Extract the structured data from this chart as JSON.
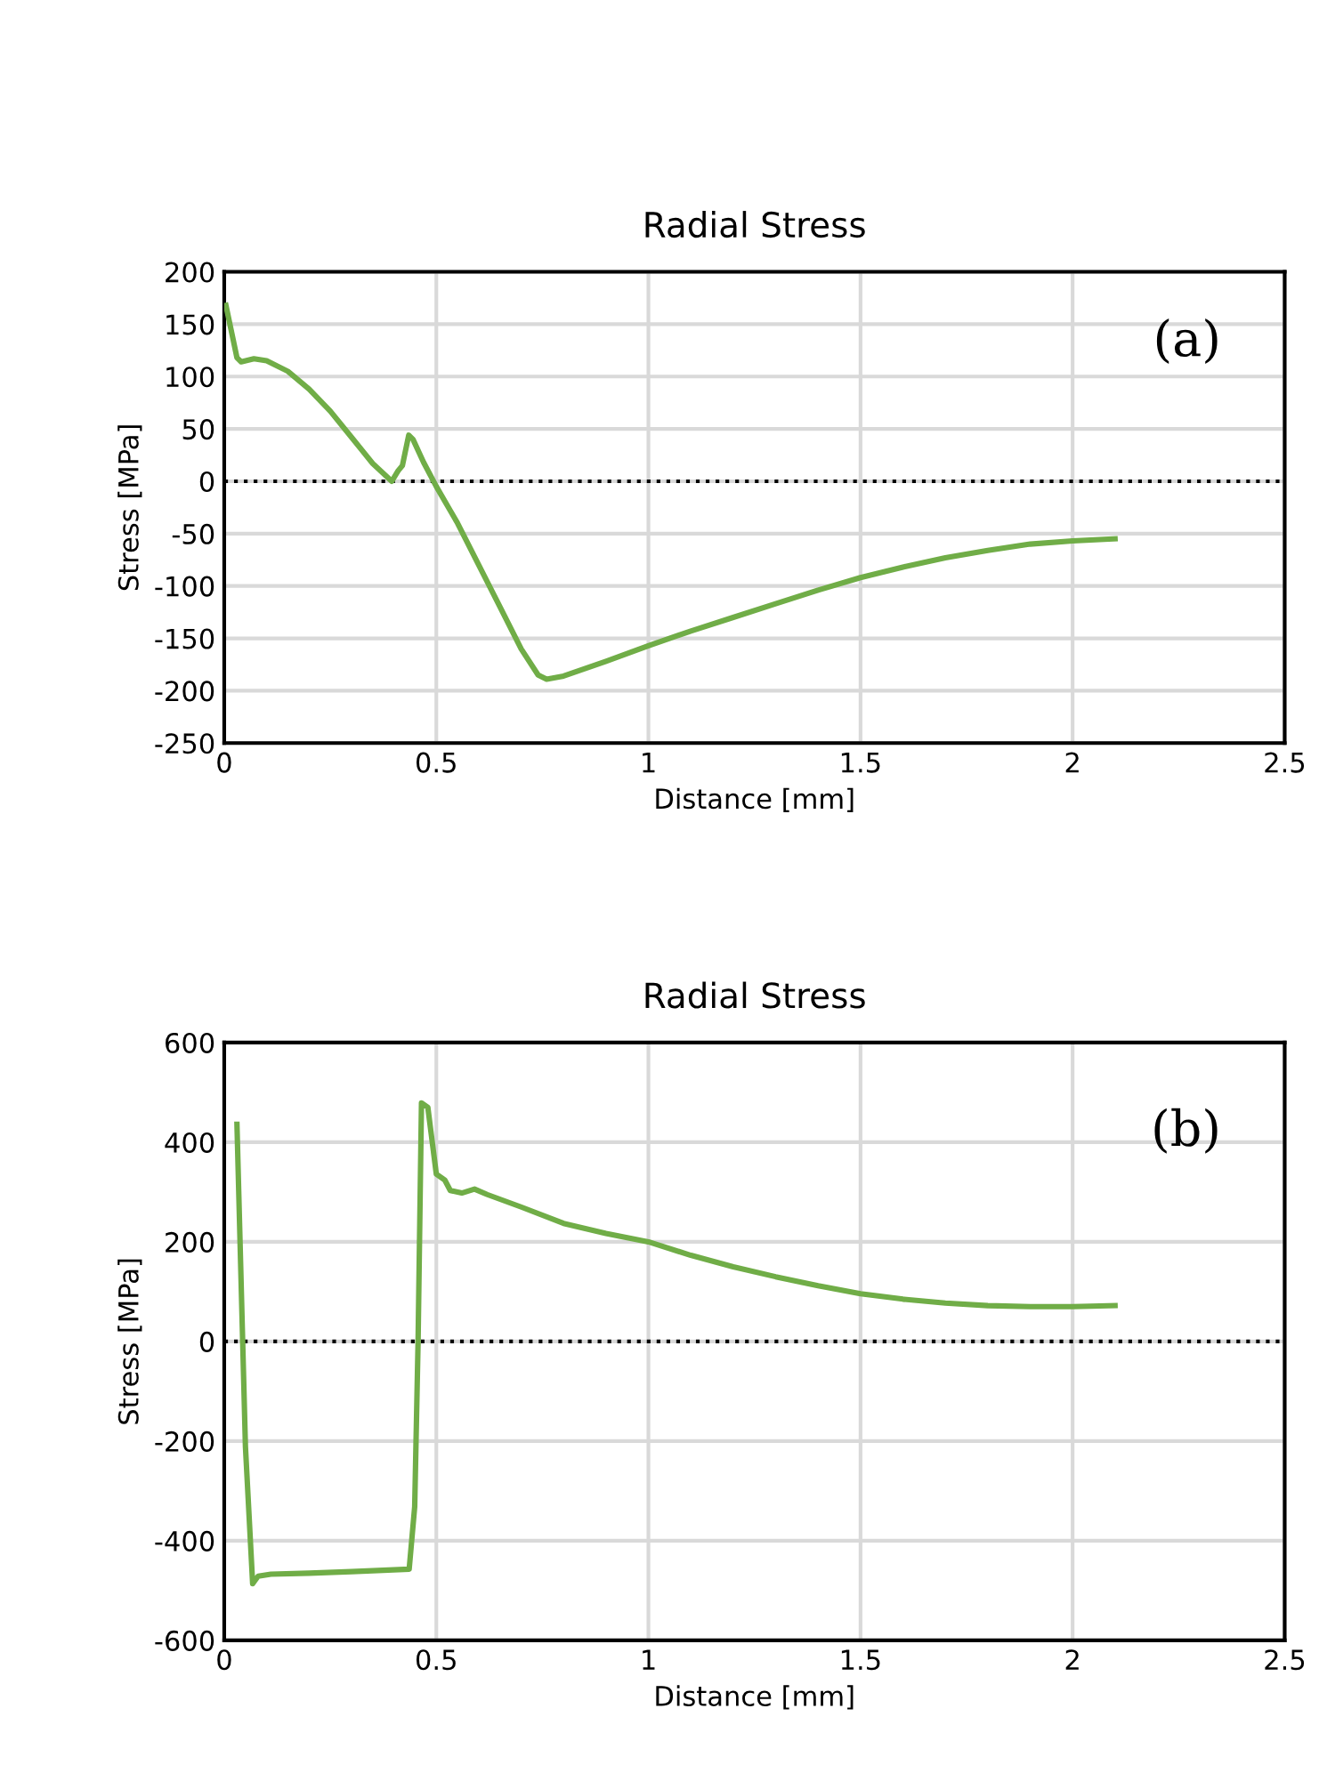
{
  "chart_data": [
    {
      "type": "line",
      "title": "Radial Stress",
      "xlabel": "Distance [mm]",
      "ylabel": "Stress [MPa]",
      "annotations": [
        "(a)"
      ],
      "series": [
        {
          "color": "#70ad47",
          "x": [
            0.004,
            0.03,
            0.04,
            0.07,
            0.1,
            0.15,
            0.2,
            0.25,
            0.3,
            0.35,
            0.395,
            0.41,
            0.42,
            0.435,
            0.445,
            0.47,
            0.5,
            0.55,
            0.6,
            0.65,
            0.7,
            0.74,
            0.76,
            0.8,
            0.9,
            1.0,
            1.1,
            1.2,
            1.3,
            1.4,
            1.5,
            1.6,
            1.7,
            1.8,
            1.9,
            2.0,
            2.1
          ],
          "values": [
            168,
            118,
            114,
            117,
            115,
            105,
            88,
            67,
            42,
            17,
            0,
            10,
            15,
            44,
            40,
            18,
            -5,
            -40,
            -80,
            -120,
            -160,
            -185,
            -189,
            -186,
            -172,
            -157,
            -143,
            -130,
            -117,
            -104,
            -92,
            -82,
            -73,
            -66,
            -60,
            -57,
            -55
          ]
        }
      ],
      "xlim": [
        0,
        2.5
      ],
      "xticks": [
        0,
        0.5,
        1,
        1.5,
        2,
        2.5
      ],
      "ylim": [
        -250,
        200
      ],
      "yticks": [
        -250,
        -200,
        -150,
        -100,
        -50,
        0,
        50,
        100,
        150,
        200
      ],
      "grid": true,
      "line_style": "solid",
      "marker": "none",
      "ref_lines": [
        {
          "axis": "y",
          "value": 0,
          "color": "#000000",
          "line_style": "dotted"
        }
      ]
    },
    {
      "type": "line",
      "title": "Radial Stress",
      "xlabel": "Distance [mm]",
      "ylabel": "Stress [MPa]",
      "annotations": [
        "(b)"
      ],
      "series": [
        {
          "color": "#70ad47",
          "x": [
            0.03,
            0.05,
            0.067,
            0.08,
            0.11,
            0.2,
            0.3,
            0.436,
            0.449,
            0.457,
            0.465,
            0.48,
            0.5,
            0.52,
            0.533,
            0.56,
            0.59,
            0.62,
            0.7,
            0.8,
            0.9,
            1.0,
            1.1,
            1.2,
            1.3,
            1.4,
            1.5,
            1.6,
            1.7,
            1.8,
            1.9,
            2.0,
            2.1
          ],
          "values": [
            436,
            -211,
            -486,
            -471,
            -467,
            -465,
            -462,
            -457,
            -332,
            0,
            479,
            470,
            336,
            324,
            303,
            298,
            306,
            295,
            270,
            237,
            217,
            200,
            173,
            150,
            130,
            112,
            96,
            85,
            77,
            72,
            70,
            70,
            72
          ]
        }
      ],
      "xlim": [
        0,
        2.5
      ],
      "xticks": [
        0,
        0.5,
        1,
        1.5,
        2,
        2.5
      ],
      "ylim": [
        -600,
        600
      ],
      "yticks": [
        -600,
        -400,
        -200,
        0,
        200,
        400,
        600
      ],
      "grid": true,
      "line_style": "solid",
      "marker": "none",
      "ref_lines": [
        {
          "axis": "y",
          "value": 0,
          "color": "#000000",
          "line_style": "dotted"
        }
      ]
    }
  ]
}
